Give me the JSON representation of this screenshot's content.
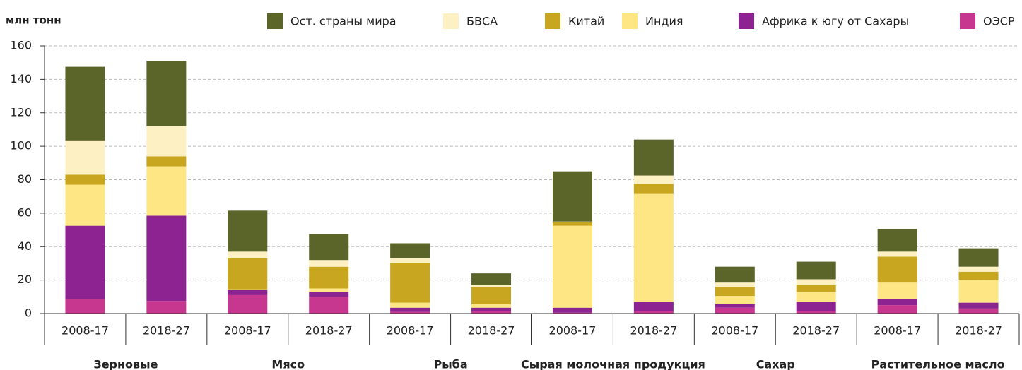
{
  "chart_data": {
    "type": "stacked_bar",
    "y_label": "млн тонн",
    "categories": [
      "2008-17",
      "2018-27",
      "2008-17",
      "2018-27",
      "2008-17",
      "2018-27",
      "2008-17",
      "2018-27",
      "2008-17",
      "2018-27",
      "2008-17",
      "2018-27"
    ],
    "groups": [
      "Зерновые",
      "Мясо",
      "Рыба",
      "Сырая молочная продукция",
      "Сахар",
      "Растительное масло"
    ],
    "series": [
      {
        "name": "Ост. страны мира",
        "color": "#5b6429",
        "values": [
          44,
          39,
          24.5,
          15.5,
          9,
          7,
          30,
          21.5,
          9.5,
          10.5,
          13.5,
          11
        ]
      },
      {
        "name": "БВСА",
        "color": "#fdf1c4",
        "values": [
          20.5,
          18,
          4,
          4,
          3,
          1,
          0.5,
          5,
          2.5,
          3.5,
          3,
          3
        ]
      },
      {
        "name": "Китай",
        "color": "#c9a620",
        "values": [
          6,
          6,
          18.5,
          13,
          23.5,
          10.5,
          2,
          6,
          5.5,
          4,
          15.5,
          5
        ]
      },
      {
        "name": "Индия",
        "color": "#fde683",
        "values": [
          24.5,
          29.5,
          0.5,
          2,
          3,
          2,
          49,
          64.5,
          5,
          6,
          10,
          13.5
        ]
      },
      {
        "name": "Африка к югу от Сахары",
        "color": "#8c2391",
        "values": [
          44,
          51,
          3,
          3,
          2.5,
          2,
          3,
          5.5,
          2,
          5.5,
          3.5,
          3.5
        ]
      },
      {
        "name": "ОЭСР",
        "color": "#c8378f",
        "values": [
          8.5,
          7.5,
          11,
          10,
          1,
          1.5,
          0.5,
          1.5,
          3.5,
          1.5,
          5,
          3
        ]
      }
    ],
    "ylim": [
      0,
      160
    ],
    "yticks": [
      0,
      20,
      40,
      60,
      80,
      100,
      120,
      140,
      160
    ],
    "grid": true
  }
}
